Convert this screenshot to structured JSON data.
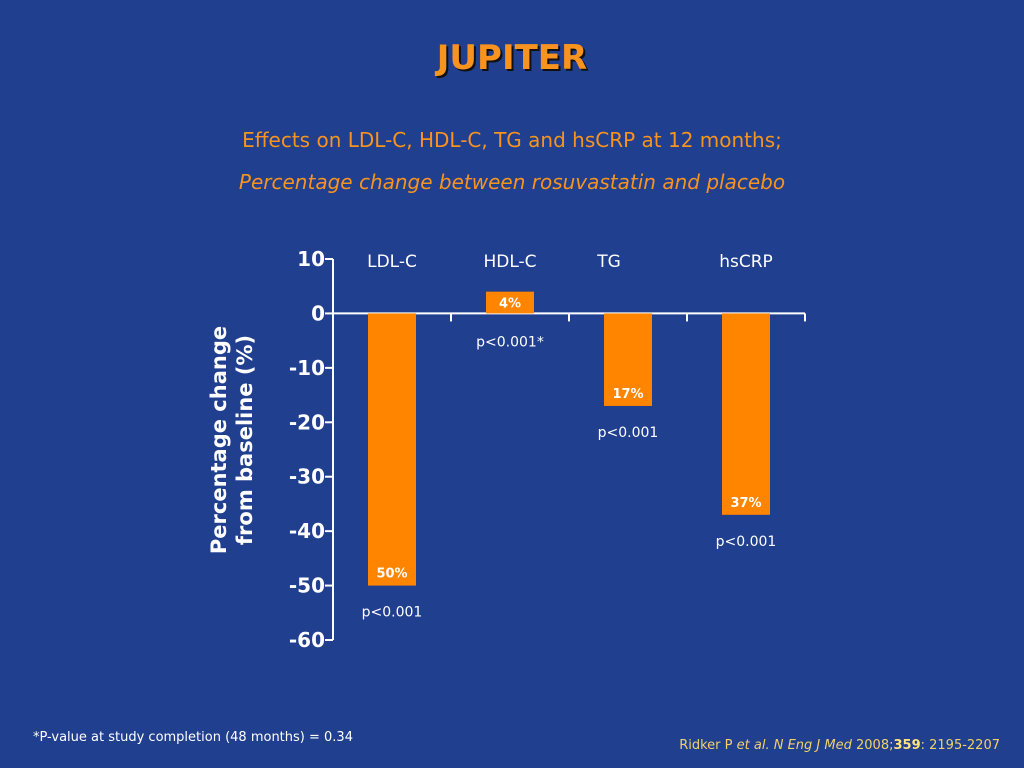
{
  "title": "JUPITER",
  "subtitle": "Effects on LDL-C, HDL-C, TG and hsCRP at 12 months;",
  "subtitle_italic": "Percentage change between rosuvastatin and placebo",
  "footnote": "*P-value at study completion (48 months) = 0.34",
  "citation": {
    "authors": "Ridker P ",
    "etal": "et al.",
    "journal": "N Eng J Med",
    "year": "2008;",
    "volume": "359",
    "pages": ": 2195-2207"
  },
  "colors": {
    "background": "#213f8f",
    "bar": "#ff8400",
    "accent": "#f7931e",
    "citation": "#f0d26a"
  },
  "chart_data": {
    "type": "bar",
    "ylabel": "Percentage change from baseline (%)",
    "ylim": [
      -60,
      10
    ],
    "yticks": [
      10,
      0,
      -10,
      -20,
      -30,
      -40,
      -50,
      -60
    ],
    "categories": [
      "LDL-C",
      "HDL-C",
      "TG",
      "hsCRP"
    ],
    "values": [
      -50,
      4,
      -17,
      -37
    ],
    "data_labels": [
      "50%",
      "4%",
      "17%",
      "37%"
    ],
    "p_values": [
      "p<0.001",
      "p<0.001*",
      "p<0.001",
      "p<0.001"
    ]
  }
}
